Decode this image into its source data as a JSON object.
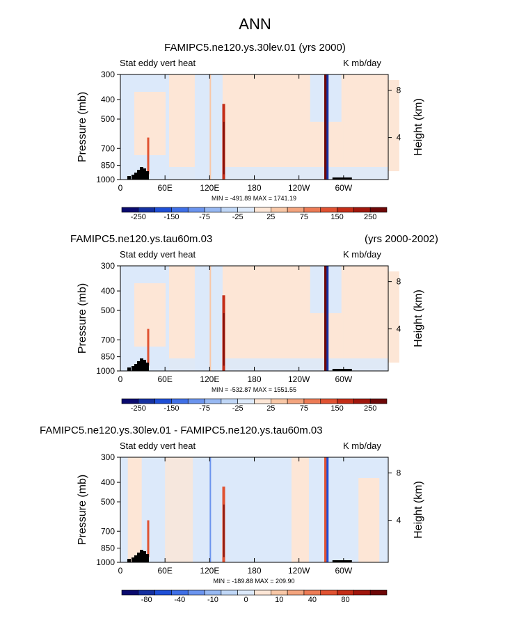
{
  "main_title": "ANN",
  "colors": {
    "levels": [
      "#0a0a6e",
      "#1530a0",
      "#1f4fd6",
      "#3f6fe6",
      "#6b94ee",
      "#97b8f2",
      "#bfd6f6",
      "#dce9fa",
      "#fde6d6",
      "#f8c7a6",
      "#f3a47e",
      "#ec7b55",
      "#e05232",
      "#c42d17",
      "#a0160c",
      "#6e0707"
    ]
  },
  "chart_data": [
    {
      "type": "heatmap",
      "title": "FAMIPC5.ne120.ys.30lev.01 (yrs 2000)",
      "title_right": "",
      "left_label": "Stat eddy vert heat",
      "units": "K mb/day",
      "ylabel": "Pressure (mb)",
      "ylabel_right": "Height (km)",
      "yticks": [
        "300",
        "400",
        "500",
        "700",
        "850",
        "1000"
      ],
      "yticks_right": [
        "8",
        "4"
      ],
      "xticks": [
        "0",
        "60E",
        "120E",
        "180",
        "120W",
        "60W"
      ],
      "min_max": "MIN = -491.89   MAX = 1741.19",
      "colorbar_ticks": [
        "-250",
        "-150",
        "-75",
        "-25",
        "25",
        "75",
        "150",
        "250"
      ]
    },
    {
      "type": "heatmap",
      "title": "FAMIPC5.ne120.ys.tau60m.03",
      "title_right": "(yrs 2000-2002)",
      "left_label": "Stat eddy vert heat",
      "units": "K mb/day",
      "ylabel": "Pressure (mb)",
      "ylabel_right": "Height (km)",
      "yticks": [
        "300",
        "400",
        "500",
        "700",
        "850",
        "1000"
      ],
      "yticks_right": [
        "8",
        "4"
      ],
      "xticks": [
        "0",
        "60E",
        "120E",
        "180",
        "120W",
        "60W"
      ],
      "min_max": "MIN = -532.87   MAX = 1551.55",
      "colorbar_ticks": [
        "-250",
        "-150",
        "-75",
        "-25",
        "25",
        "75",
        "150",
        "250"
      ]
    },
    {
      "type": "heatmap",
      "title": "FAMIPC5.ne120.ys.30lev.01 - FAMIPC5.ne120.ys.tau60m.03",
      "title_right": "",
      "left_label": "Stat eddy vert heat",
      "units": "K mb/day",
      "ylabel": "Pressure (mb)",
      "ylabel_right": "Height (km)",
      "yticks": [
        "300",
        "400",
        "500",
        "700",
        "850",
        "1000"
      ],
      "yticks_right": [
        "8",
        "4"
      ],
      "xticks": [
        "0",
        "60E",
        "120E",
        "180",
        "120W",
        "60W"
      ],
      "min_max": "MIN = -189.88   MAX = 209.90",
      "colorbar_ticks": [
        "-80",
        "-40",
        "-10",
        "0",
        "10",
        "40",
        "80"
      ]
    }
  ]
}
